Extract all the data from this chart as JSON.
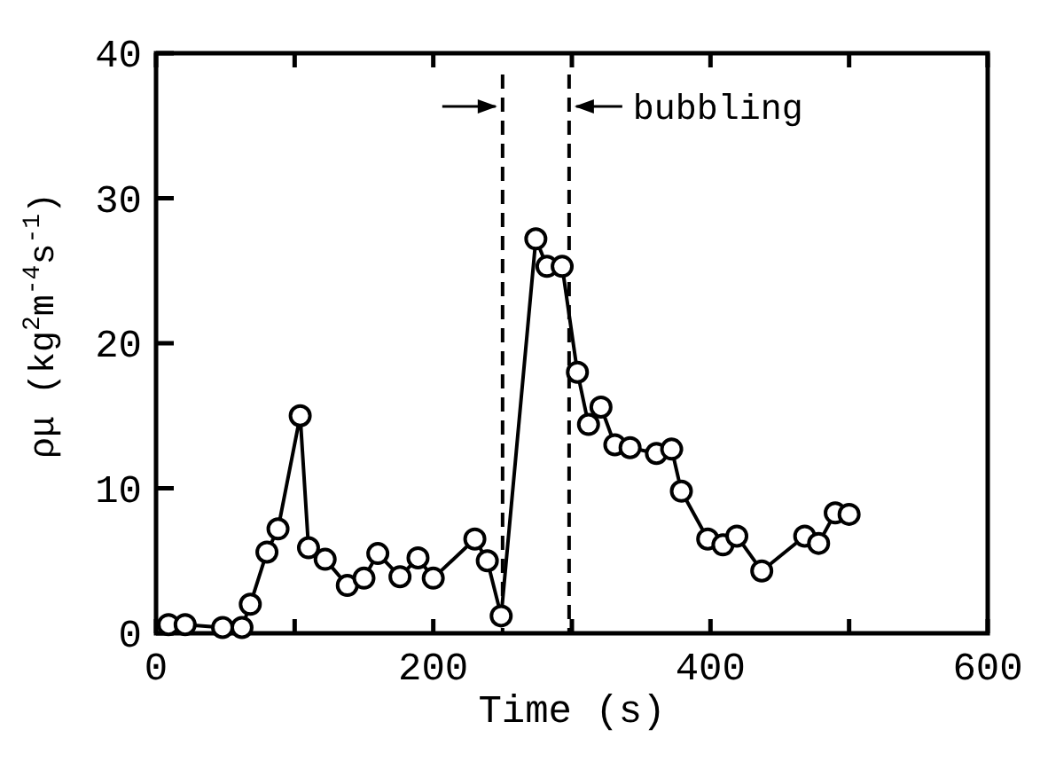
{
  "chart_data": {
    "type": "line",
    "xlabel": "Time (s)",
    "ylabel": "ρμ (kg$^{2}$m$^{-4}$s$^{-1}$)",
    "xlim": [
      0,
      600
    ],
    "ylim": [
      0,
      40
    ],
    "xticks": [
      0,
      {
        "value": 100,
        "label": null
      },
      200,
      {
        "value": 300,
        "label": null
      },
      400,
      {
        "value": 500,
        "label": null
      },
      600
    ],
    "yticks": [
      0,
      10,
      20,
      30,
      40
    ],
    "marker": "circle",
    "line_style": "solid",
    "ref_lines": [
      {
        "axis": "x",
        "value": 250,
        "line_style": "dashed",
        "color": "#000000"
      },
      {
        "axis": "x",
        "value": 298,
        "label": "bubbling",
        "line_style": "dashed",
        "color": "#000000"
      }
    ],
    "series": [
      {
        "color": "#000000",
        "x": [
          9,
          21,
          48,
          62,
          68,
          80,
          88,
          104,
          110,
          122,
          138,
          150,
          160,
          176,
          189,
          200,
          230,
          239,
          249,
          274,
          282,
          293,
          304,
          312,
          321,
          331,
          342,
          361,
          372,
          379,
          398,
          409,
          419,
          437,
          468,
          478,
          490,
          500
        ],
        "values": [
          0.6,
          0.6,
          0.4,
          0.4,
          2,
          5.6,
          7.2,
          15,
          5.9,
          5.1,
          3.3,
          3.8,
          5.5,
          3.9,
          5.2,
          3.8,
          6.5,
          5,
          1.2,
          27.2,
          25.3,
          25.3,
          18,
          14.4,
          15.6,
          13,
          12.8,
          12.4,
          12.7,
          9.8,
          6.5,
          6.1,
          6.7,
          4.3,
          6.7,
          6.2,
          8.3,
          8.2
        ]
      }
    ]
  }
}
